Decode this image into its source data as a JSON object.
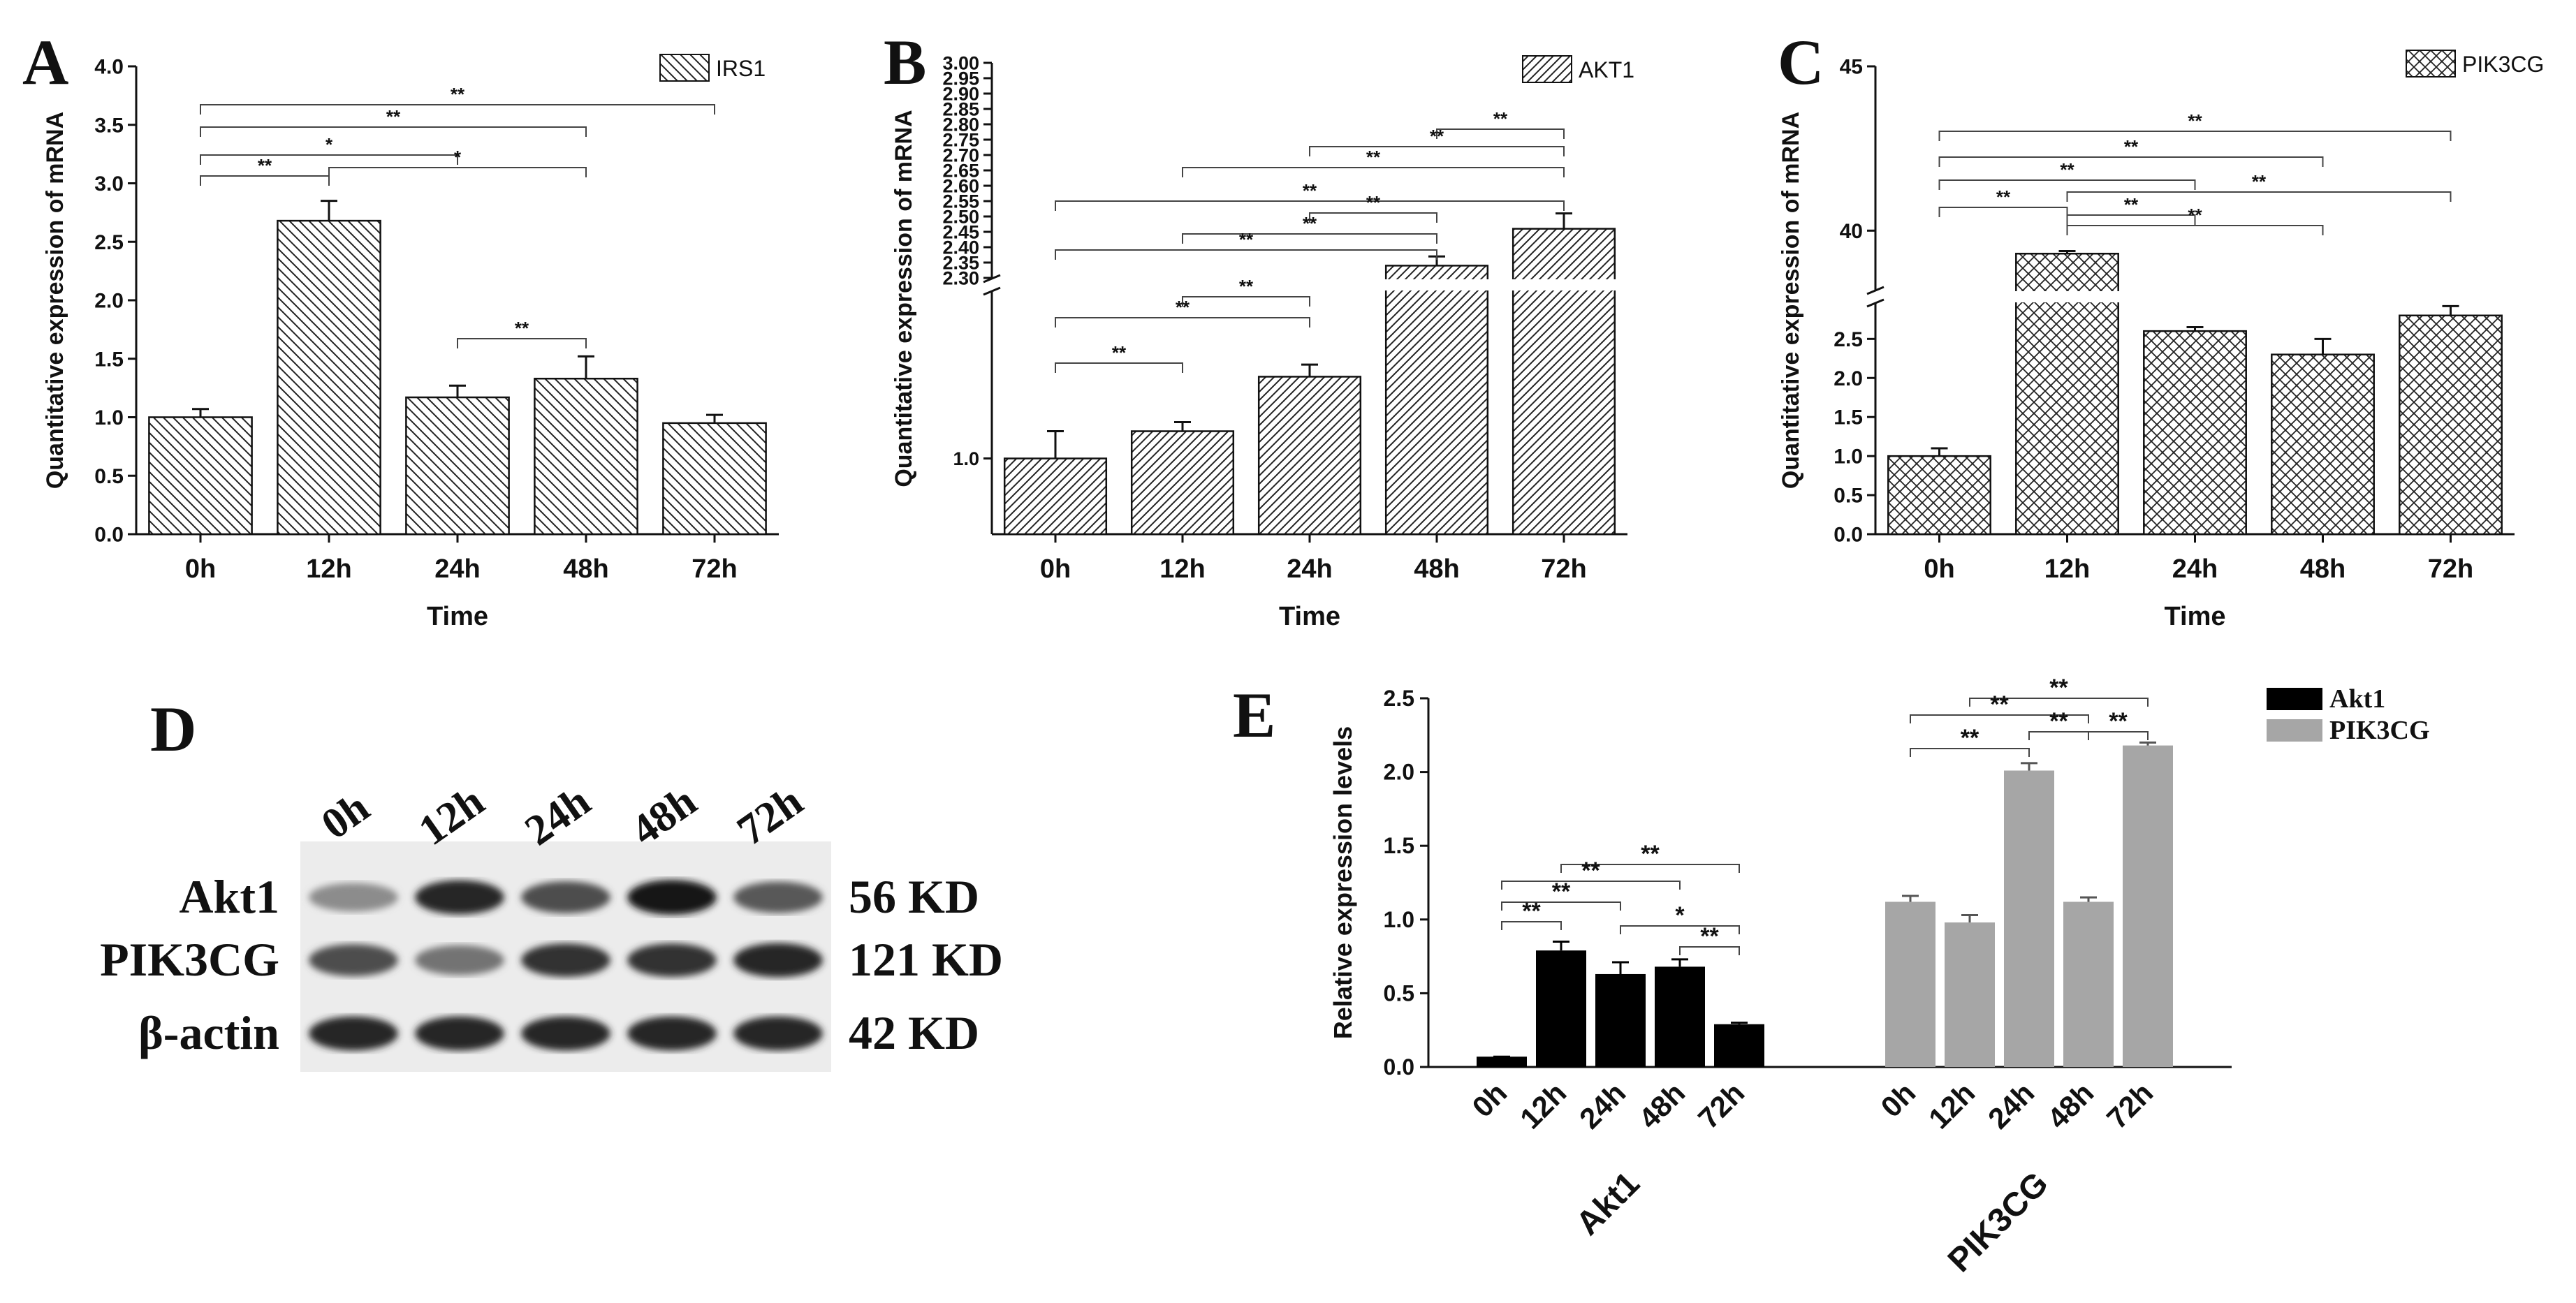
{
  "chart_data": [
    {
      "panel": "A",
      "type": "bar",
      "legend": "IRS1",
      "categories": [
        "0h",
        "12h",
        "24h",
        "48h",
        "72h"
      ],
      "values": [
        1.0,
        2.68,
        1.17,
        1.33,
        0.95
      ],
      "errors": [
        0.07,
        0.17,
        0.1,
        0.19,
        0.07
      ],
      "xlabel": "Time",
      "ylabel": "Quantitative expression of mRNA",
      "ylim": [
        0,
        4.0
      ],
      "yticks": [
        "0.0",
        "0.5",
        "1.0",
        "1.5",
        "2.0",
        "2.5",
        "3.0",
        "3.5",
        "4.0"
      ],
      "significance": [
        {
          "from": "0h",
          "to": "72h",
          "label": "**"
        },
        {
          "from": "0h",
          "to": "48h",
          "label": "**"
        },
        {
          "from": "0h",
          "to": "24h",
          "label": "*"
        },
        {
          "from": "12h",
          "to": "48h",
          "label": "*"
        },
        {
          "from": "0h",
          "to": "12h",
          "label": "**"
        },
        {
          "from": "24h",
          "to": "48h",
          "label": "**"
        }
      ]
    },
    {
      "panel": "B",
      "type": "bar",
      "legend": "AKT1",
      "categories": [
        "0h",
        "12h",
        "24h",
        "48h",
        "72h"
      ],
      "values": [
        1.0,
        1.18,
        1.54,
        2.34,
        2.46
      ],
      "errors": [
        0.18,
        0.06,
        0.08,
        0.03,
        0.05
      ],
      "xlabel": "Time",
      "ylabel": "Quantitative expression of mRNA",
      "axis_break": {
        "lower_range": [
          0.5,
          2.1
        ],
        "upper_range": [
          2.3,
          3.0
        ]
      },
      "yticks_lower": [
        "1.0"
      ],
      "yticks_upper": [
        "2.30",
        "2.35",
        "2.40",
        "2.45",
        "2.50",
        "2.55",
        "2.60",
        "2.65",
        "2.70",
        "2.75",
        "2.80",
        "2.85",
        "2.90",
        "2.95",
        "3.00"
      ],
      "significance": [
        {
          "from": "48h",
          "to": "72h",
          "label": "**"
        },
        {
          "from": "24h",
          "to": "72h",
          "label": "**"
        },
        {
          "from": "12h",
          "to": "72h",
          "label": "**"
        },
        {
          "from": "0h",
          "to": "72h",
          "label": "**"
        },
        {
          "from": "24h",
          "to": "48h",
          "label": "**"
        },
        {
          "from": "12h",
          "to": "48h",
          "label": "**"
        },
        {
          "from": "0h",
          "to": "48h",
          "label": "**"
        },
        {
          "from": "12h",
          "to": "24h",
          "label": "**"
        },
        {
          "from": "0h",
          "to": "24h",
          "label": "**"
        },
        {
          "from": "0h",
          "to": "12h",
          "label": "**"
        }
      ]
    },
    {
      "panel": "C",
      "type": "bar",
      "legend": "PIK3CG",
      "categories": [
        "0h",
        "12h",
        "24h",
        "48h",
        "72h"
      ],
      "values": [
        1.0,
        39.3,
        2.6,
        2.3,
        2.8
      ],
      "errors": [
        0.1,
        0.08,
        0.05,
        0.2,
        0.12
      ],
      "xlabel": "Time",
      "ylabel": "Quantitative expression of mRNA",
      "axis_break": {
        "lower_range": [
          0,
          2.95
        ],
        "upper_range": [
          38.2,
          45
        ]
      },
      "yticks_lower": [
        "0.0",
        "0.5",
        "1.0",
        "1.5",
        "2.0",
        "2.5"
      ],
      "yticks_upper": [
        "40",
        "45"
      ],
      "significance": [
        {
          "from": "0h",
          "to": "72h",
          "label": "**"
        },
        {
          "from": "0h",
          "to": "48h",
          "label": "**"
        },
        {
          "from": "0h",
          "to": "24h",
          "label": "**"
        },
        {
          "from": "12h",
          "to": "72h",
          "label": "**"
        },
        {
          "from": "0h",
          "to": "12h",
          "label": "**"
        },
        {
          "from": "12h",
          "to": "24h",
          "label": "**"
        },
        {
          "from": "12h",
          "to": "48h",
          "label": "**"
        }
      ]
    },
    {
      "panel": "E",
      "type": "bar",
      "ylabel": "Relative expression levels",
      "ylim": [
        0,
        2.5
      ],
      "yticks": [
        "0.0",
        "0.5",
        "1.0",
        "1.5",
        "2.0",
        "2.5"
      ],
      "categories": [
        "0h",
        "12h",
        "24h",
        "48h",
        "72h"
      ],
      "series": [
        {
          "name": "Akt1",
          "color": "#000000",
          "values": [
            0.07,
            0.79,
            0.63,
            0.68,
            0.29
          ],
          "errors": [
            0.0,
            0.06,
            0.08,
            0.05,
            0.01
          ]
        },
        {
          "name": "PIK3CG",
          "color": "#a6a6a6",
          "values": [
            1.12,
            0.98,
            2.01,
            1.12,
            2.18
          ],
          "errors": [
            0.04,
            0.05,
            0.05,
            0.03,
            0.02
          ]
        }
      ],
      "group_labels": [
        "Akt1",
        "PIK3CG"
      ],
      "significance": [
        {
          "series": "Akt1",
          "from": "12h",
          "to": "72h",
          "label": "**"
        },
        {
          "series": "Akt1",
          "from": "0h",
          "to": "48h",
          "label": "**"
        },
        {
          "series": "Akt1",
          "from": "0h",
          "to": "24h",
          "label": "**"
        },
        {
          "series": "Akt1",
          "from": "0h",
          "to": "12h",
          "label": "**"
        },
        {
          "series": "Akt1",
          "from": "24h",
          "to": "72h",
          "label": "*"
        },
        {
          "series": "Akt1",
          "from": "48h",
          "to": "72h",
          "label": "**"
        },
        {
          "series": "PIK3CG",
          "from": "12h",
          "to": "72h",
          "label": "**"
        },
        {
          "series": "PIK3CG",
          "from": "0h",
          "to": "48h",
          "label": "**"
        },
        {
          "series": "PIK3CG",
          "from": "0h",
          "to": "24h",
          "label": "**"
        },
        {
          "series": "PIK3CG",
          "from": "24h",
          "to": "48h",
          "label": "**"
        },
        {
          "series": "PIK3CG",
          "from": "48h",
          "to": "72h",
          "label": "**"
        }
      ]
    }
  ],
  "western_blot": {
    "panel": "D",
    "lanes": [
      "0h",
      "12h",
      "24h",
      "48h",
      "72h"
    ],
    "rows": [
      {
        "protein": "Akt1",
        "size": "56 KD",
        "intensity": [
          0.45,
          0.85,
          0.7,
          0.9,
          0.65
        ]
      },
      {
        "protein": "PIK3CG",
        "size": "121 KD",
        "intensity": [
          0.7,
          0.55,
          0.8,
          0.8,
          0.85
        ]
      },
      {
        "protein": "β-actin",
        "size": "42 KD",
        "intensity": [
          0.85,
          0.85,
          0.85,
          0.85,
          0.85
        ]
      }
    ]
  }
}
